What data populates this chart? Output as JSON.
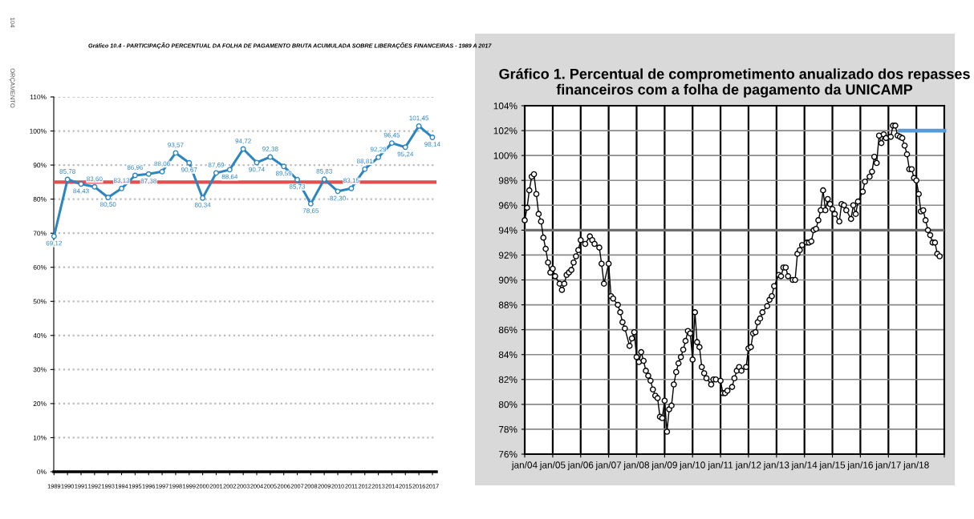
{
  "chart_data": [
    {
      "type": "line",
      "title": "Gráfico 10.4 - PARTICIPAÇÃO PERCENTUAL DA FOLHA DE PAGAMENTO BRUTA ACUMULADA SOBRE LIBERAÇÕES FINANCEIRAS - 1989 A 2017",
      "annotations": [
        "104",
        "ORÇAMENTO"
      ],
      "categories": [
        "1989",
        "1990",
        "1991",
        "1992",
        "1993",
        "1994",
        "1995",
        "1996",
        "1997",
        "1998",
        "1999",
        "2000",
        "2001",
        "2002",
        "2003",
        "2004",
        "2005",
        "2006",
        "2007",
        "2008",
        "2009",
        "2010",
        "2011",
        "2012",
        "2013",
        "2014",
        "2015",
        "2016",
        "2017"
      ],
      "series": [
        {
          "color": "#2e86c1",
          "values": [
            69.12,
            85.78,
            84.43,
            83.6,
            80.5,
            83.13,
            86.96,
            87.38,
            88.06,
            93.57,
            90.67,
            80.34,
            87.69,
            88.64,
            94.72,
            90.74,
            92.38,
            89.59,
            85.73,
            78.65,
            85.83,
            82.3,
            83.15,
            88.81,
            92.29,
            96.45,
            95.24,
            101.45,
            98.14
          ],
          "value_labels": [
            "69,12",
            "85,78",
            "84,43",
            "83,60",
            "80,50",
            "83,13",
            "86,96",
            "87,38",
            "88,06",
            "93,57",
            "90,67",
            "80,34",
            "87,69",
            "88,64",
            "94,72",
            "90,74",
            "92,38",
            "89,59",
            "85,73",
            "78,65",
            "85,83",
            "82,30",
            "83,15",
            "88,81",
            "92,29",
            "96,45",
            "95,24",
            "101,45",
            "98,14"
          ]
        }
      ],
      "ylim": [
        0,
        110
      ],
      "yticks": [
        {
          "value": 0,
          "label": "0%"
        },
        {
          "value": 10,
          "label": "10%"
        },
        {
          "value": 20,
          "label": "20%"
        },
        {
          "value": 30,
          "label": "30%"
        },
        {
          "value": 40,
          "label": "40%"
        },
        {
          "value": 50,
          "label": "50%"
        },
        {
          "value": 60,
          "label": "60%"
        },
        {
          "value": 70,
          "label": "70%"
        },
        {
          "value": 80,
          "label": "80%"
        },
        {
          "value": 90,
          "label": "90%"
        },
        {
          "value": 100,
          "label": "100%"
        },
        {
          "value": 110,
          "label": "110%"
        }
      ],
      "ref_lines": [
        {
          "axis": "y",
          "value": 85,
          "color": "#e05050"
        }
      ],
      "grid": "y",
      "marker": "circle",
      "line_style": "solid"
    },
    {
      "type": "line",
      "title": "Gráfico 1. Percentual de comprometimento anualizado dos repasses financeiros com a folha de pagamento da UNICAMP",
      "series": [
        {
          "color": "#000000",
          "marker": "circle",
          "x": [
            "2004-01",
            "2004-02",
            "2004-03",
            "2004-04",
            "2004-05",
            "2004-06",
            "2004-07",
            "2004-08",
            "2004-09",
            "2004-10",
            "2004-11",
            "2004-12",
            "2005-01",
            "2005-02",
            "2005-04",
            "2005-05",
            "2005-06",
            "2005-07",
            "2005-08",
            "2005-09",
            "2005-10",
            "2005-11",
            "2005-12",
            "2006-01",
            "2006-03",
            "2006-05",
            "2006-06",
            "2006-07",
            "2006-09",
            "2006-10",
            "2006-11",
            "2007-01",
            "2007-02",
            "2007-03",
            "2007-05",
            "2007-06",
            "2007-07",
            "2007-08",
            "2007-10",
            "2007-11",
            "2007-12",
            "2008-01",
            "2008-02",
            "2008-03",
            "2008-04",
            "2008-05",
            "2008-06",
            "2008-07",
            "2008-08",
            "2008-09",
            "2008-10",
            "2008-11",
            "2008-12",
            "2009-01",
            "2009-02",
            "2009-03",
            "2009-04",
            "2009-05",
            "2009-06",
            "2009-07",
            "2009-08",
            "2009-09",
            "2009-10",
            "2009-11",
            "2009-12",
            "2010-01",
            "2010-02",
            "2010-03",
            "2010-04",
            "2010-05",
            "2010-06",
            "2010-07",
            "2010-09",
            "2010-10",
            "2010-11",
            "2011-01",
            "2011-02",
            "2011-03",
            "2011-04",
            "2011-06",
            "2011-07",
            "2011-08",
            "2011-09",
            "2011-10",
            "2011-12",
            "2012-01",
            "2012-02",
            "2012-03",
            "2012-04",
            "2012-05",
            "2012-06",
            "2012-07",
            "2012-09",
            "2012-10",
            "2012-11",
            "2012-12",
            "2013-02",
            "2013-03",
            "2013-04",
            "2013-05",
            "2013-06",
            "2013-08",
            "2013-09",
            "2013-10",
            "2013-11",
            "2013-12",
            "2014-02",
            "2014-03",
            "2014-04",
            "2014-05",
            "2014-06",
            "2014-07",
            "2014-08",
            "2014-09",
            "2014-10",
            "2014-11",
            "2014-12",
            "2015-01",
            "2015-02",
            "2015-04",
            "2015-05",
            "2015-06",
            "2015-07",
            "2015-09",
            "2015-10",
            "2015-11",
            "2015-12",
            "2016-02",
            "2016-03",
            "2016-05",
            "2016-06",
            "2016-07",
            "2016-08",
            "2016-09",
            "2016-10",
            "2016-11",
            "2016-12",
            "2017-02",
            "2017-03",
            "2017-04",
            "2017-05",
            "2017-06",
            "2017-07",
            "2017-08",
            "2017-09",
            "2017-10",
            "2017-11",
            "2017-12",
            "2018-01",
            "2018-02",
            "2018-03",
            "2018-04",
            "2018-05",
            "2018-06",
            "2018-07",
            "2018-08",
            "2018-09",
            "2018-10",
            "2018-11"
          ],
          "values": [
            94.8,
            95.8,
            97.2,
            98.3,
            98.5,
            96.9,
            95.3,
            94.7,
            93.4,
            92.5,
            91.4,
            90.6,
            90.9,
            90.3,
            89.7,
            89.2,
            89.7,
            90.4,
            90.6,
            90.8,
            91.4,
            91.9,
            92.4,
            93.2,
            92.9,
            93.5,
            93.2,
            92.9,
            92.6,
            91.3,
            89.7,
            91.3,
            88.7,
            88.5,
            88.0,
            87.4,
            86.6,
            86.1,
            84.7,
            85.3,
            85.8,
            83.8,
            83.4,
            84.2,
            83.5,
            82.7,
            82.3,
            81.9,
            81.2,
            80.7,
            80.5,
            79.0,
            78.9,
            80.3,
            77.8,
            79.6,
            79.9,
            81.6,
            82.6,
            83.3,
            83.8,
            84.4,
            85.1,
            85.9,
            85.7,
            83.6,
            87.4,
            85.0,
            84.6,
            83.0,
            82.5,
            82.1,
            81.6,
            82.0,
            82.0,
            81.9,
            80.9,
            80.9,
            81.1,
            81.4,
            82.1,
            82.7,
            83.0,
            82.7,
            83.0,
            84.5,
            84.6,
            85.7,
            85.8,
            86.6,
            86.9,
            87.4,
            87.9,
            88.4,
            88.7,
            89.5,
            90.4,
            90.3,
            91.0,
            91.0,
            90.3,
            90.0,
            90.0,
            92.1,
            92.4,
            92.8,
            93.0,
            93.0,
            93.1,
            94.0,
            94.1,
            94.8,
            95.6,
            97.2,
            95.6,
            96.5,
            96.1,
            95.7,
            95.3,
            94.7,
            96.1,
            96.0,
            95.6,
            94.9,
            96.0,
            95.3,
            96.3,
            97.1,
            97.9,
            98.3,
            98.7,
            99.9,
            99.4,
            101.6,
            101.0,
            101.7,
            101.4,
            101.5,
            102.4,
            102.4,
            101.6,
            101.5,
            101.4,
            100.8,
            100.1,
            98.9,
            98.9,
            98.2,
            98.0,
            96.9,
            95.5,
            95.6,
            94.8,
            94.0,
            93.6,
            93.0,
            93.0,
            92.1,
            91.9
          ]
        },
        {
          "color": "#5b9bd5",
          "marker": "none",
          "x": [
            "2017-06",
            "2019-01"
          ],
          "values": [
            102,
            102
          ]
        }
      ],
      "xlim": [
        "2004-01",
        "2019-01"
      ],
      "xticks": [
        {
          "value": "2004-01",
          "label": "jan/04"
        },
        {
          "value": "2005-01",
          "label": "jan/05"
        },
        {
          "value": "2006-01",
          "label": "jan/06"
        },
        {
          "value": "2007-01",
          "label": "jan/07"
        },
        {
          "value": "2008-01",
          "label": "jan/08"
        },
        {
          "value": "2009-01",
          "label": "jan/09"
        },
        {
          "value": "2010-01",
          "label": "jan/10"
        },
        {
          "value": "2011-01",
          "label": "jan/11"
        },
        {
          "value": "2012-01",
          "label": "jan/12"
        },
        {
          "value": "2013-01",
          "label": "jan/13"
        },
        {
          "value": "2014-01",
          "label": "jan/14"
        },
        {
          "value": "2015-01",
          "label": "jan/15"
        },
        {
          "value": "2016-01",
          "label": "jan/16"
        },
        {
          "value": "2017-01",
          "label": "jan/17"
        },
        {
          "value": "2018-01",
          "label": "jan/18"
        },
        {
          "value": "2019-01",
          "label": null
        }
      ],
      "ylim": [
        76,
        104
      ],
      "yticks": [
        {
          "value": 76,
          "label": "76%"
        },
        {
          "value": 78,
          "label": "78%"
        },
        {
          "value": 80,
          "label": "80%"
        },
        {
          "value": 82,
          "label": "82%"
        },
        {
          "value": 84,
          "label": "84%"
        },
        {
          "value": 86,
          "label": "86%"
        },
        {
          "value": 88,
          "label": "88%"
        },
        {
          "value": 90,
          "label": "90%"
        },
        {
          "value": 92,
          "label": "92%"
        },
        {
          "value": 94,
          "label": "94%"
        },
        {
          "value": 96,
          "label": "96%"
        },
        {
          "value": 98,
          "label": "98%"
        },
        {
          "value": 100,
          "label": "100%"
        },
        {
          "value": 102,
          "label": "102%"
        },
        {
          "value": 104,
          "label": "104%"
        }
      ],
      "ref_lines": [
        {
          "axis": "y",
          "value": 94,
          "color": "#6e6e6e"
        }
      ],
      "grid": true,
      "line_style": "solid"
    }
  ]
}
